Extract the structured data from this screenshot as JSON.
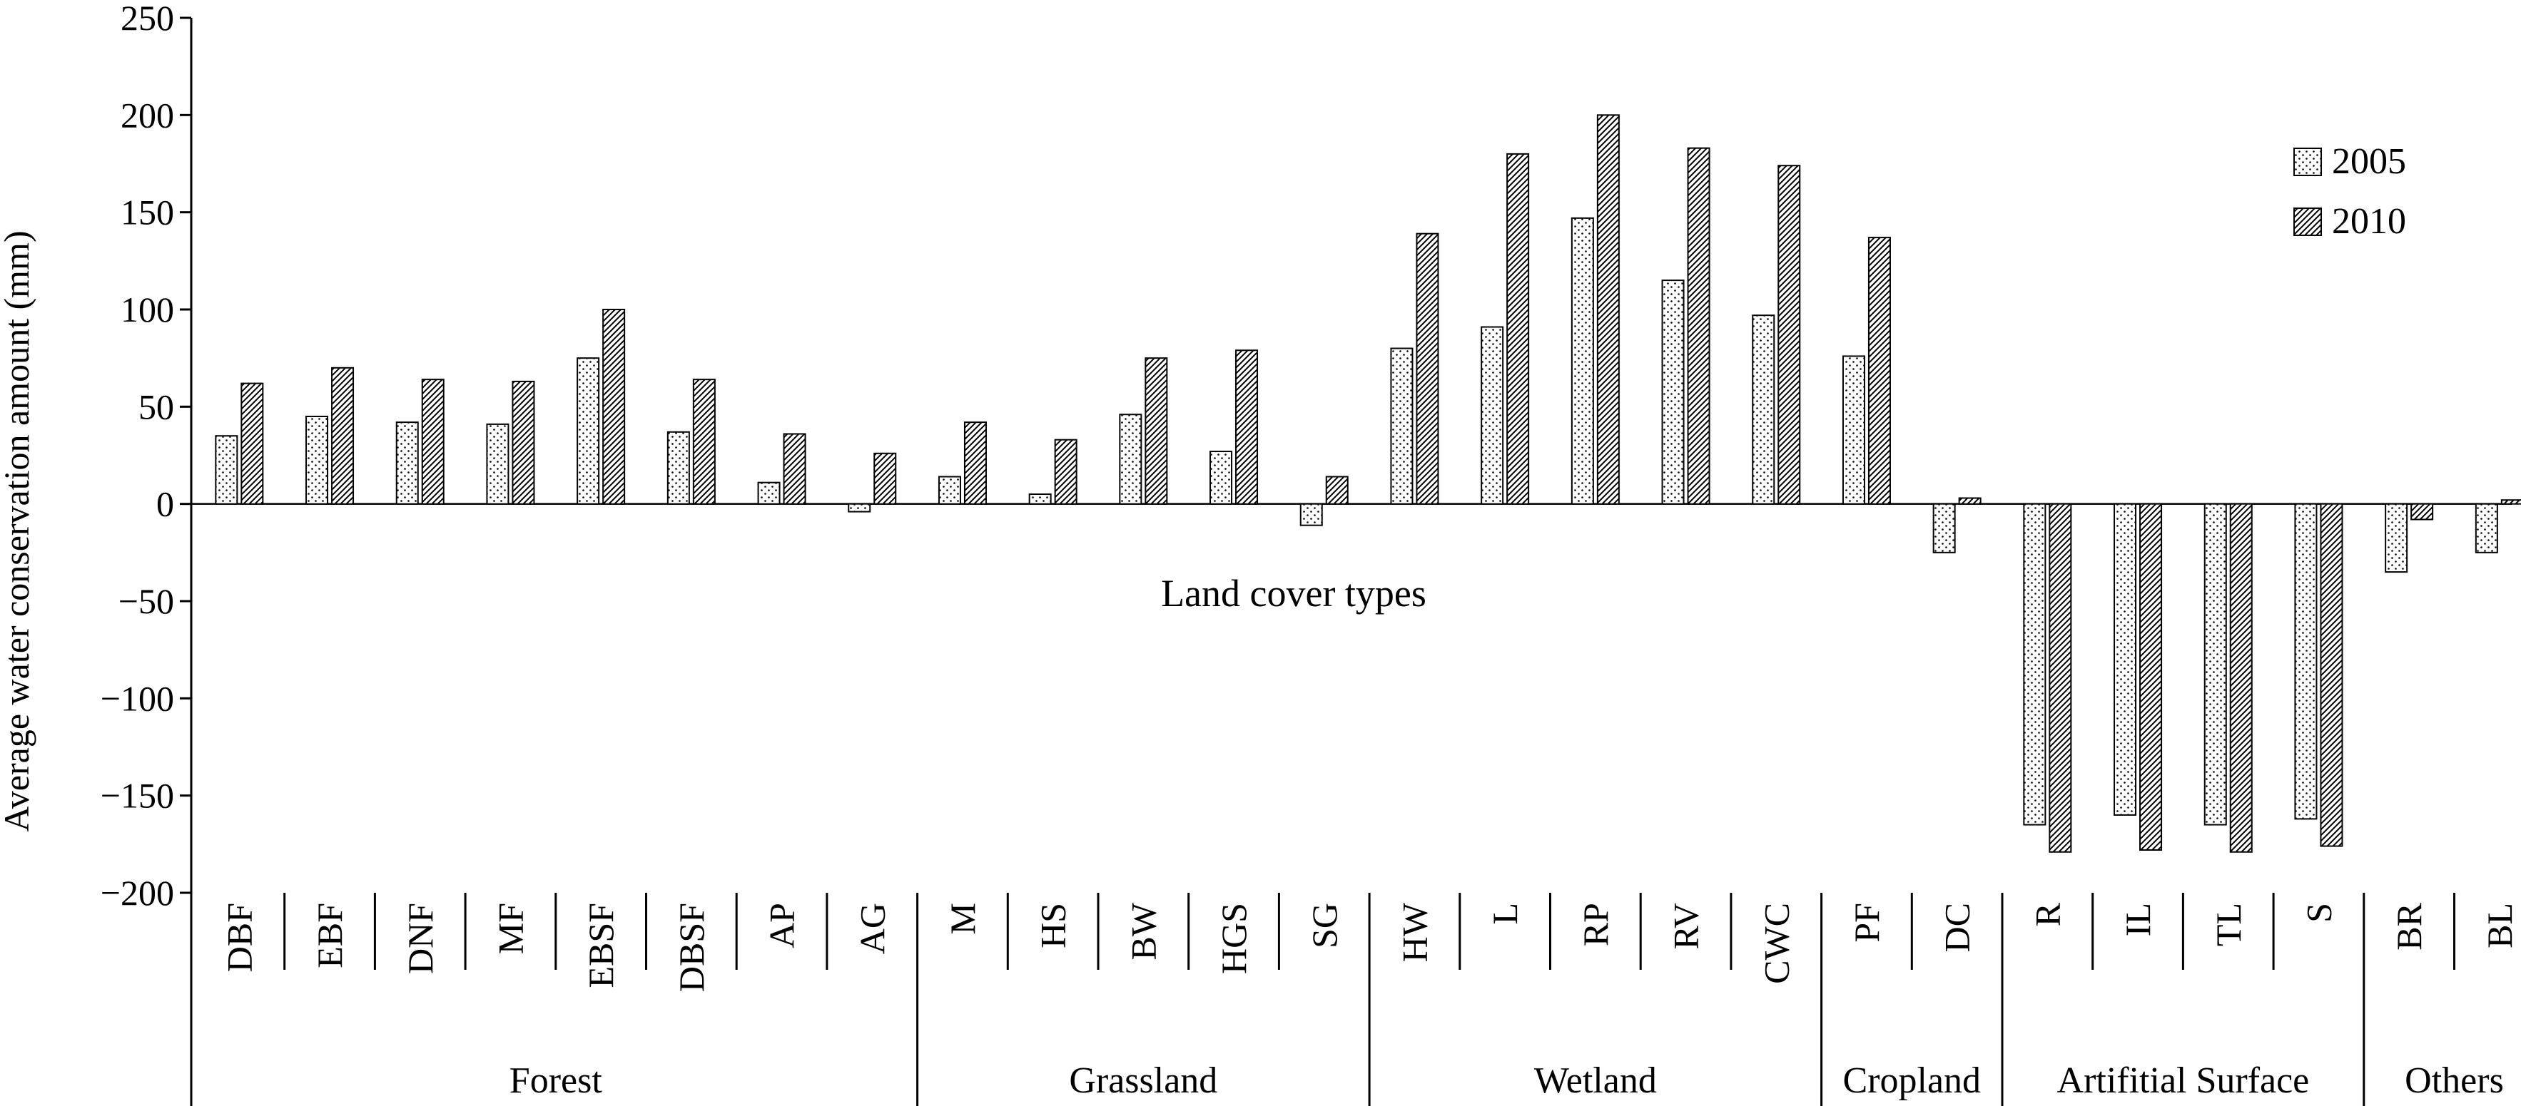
{
  "chart_data": {
    "type": "bar",
    "xlabel": "Land cover types",
    "ylabel": "Average water conservation amount (mm)",
    "ylim": [
      -200,
      250
    ],
    "yticks": [
      250,
      200,
      150,
      100,
      50,
      0,
      -50,
      -100,
      -150,
      -200
    ],
    "ytick_labels": [
      "250",
      "200",
      "150",
      "100",
      "50",
      "0",
      "−50",
      "−100",
      "−150",
      "−200"
    ],
    "grid": false,
    "legend_position": "top-right",
    "categories": [
      "DBF",
      "EBF",
      "DNF",
      "MF",
      "EBSF",
      "DBSF",
      "AP",
      "AG",
      "M",
      "HS",
      "BW",
      "HGS",
      "SG",
      "HW",
      "L",
      "RP",
      "RV",
      "CWC",
      "PF",
      "DC",
      "R",
      "IL",
      "TL",
      "S",
      "BR",
      "BL"
    ],
    "groups": [
      {
        "name": "Forest",
        "count": 8
      },
      {
        "name": "Grassland",
        "count": 5
      },
      {
        "name": "Wetland",
        "count": 5
      },
      {
        "name": "Cropland",
        "count": 2
      },
      {
        "name": "Artifitial Surface",
        "count": 4
      },
      {
        "name": "Others",
        "count": 2
      }
    ],
    "series": [
      {
        "name": "2005",
        "pattern": "dots",
        "values": [
          35,
          45,
          42,
          41,
          75,
          37,
          11,
          -4,
          14,
          5,
          46,
          27,
          -11,
          80,
          91,
          147,
          115,
          97,
          76,
          -25,
          -165,
          -160,
          -165,
          -162,
          -35,
          -25
        ]
      },
      {
        "name": "2010",
        "pattern": "hatch",
        "values": [
          62,
          70,
          64,
          63,
          100,
          64,
          36,
          26,
          42,
          33,
          75,
          79,
          14,
          139,
          180,
          200,
          183,
          174,
          137,
          3,
          -179,
          -178,
          -179,
          -176,
          -8,
          2
        ]
      }
    ]
  }
}
